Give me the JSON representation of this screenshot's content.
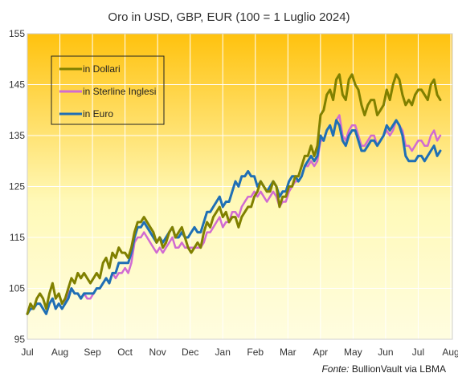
{
  "chart_data": {
    "type": "line",
    "title": "Oro in USD, GBP, EUR (100 = 1 Luglio 2024)",
    "source_prefix": "Fonte:",
    "source_name": " BullionVault via LBMA",
    "xlabel": "",
    "ylabel": "",
    "ylim": [
      95,
      155
    ],
    "yticks": [
      95,
      105,
      115,
      125,
      135,
      145,
      155
    ],
    "xtick_labels": [
      "Jul",
      "Aug",
      "Sep",
      "Oct",
      "Nov",
      "Dec",
      "Jan",
      "Feb",
      "Mar",
      "Apr",
      "May",
      "Jun",
      "Jul",
      "Aug"
    ],
    "grid": true,
    "legend_position": "top-left",
    "background_gradient": [
      "#ffc20e",
      "#fff9b8",
      "#fffde0"
    ],
    "series": [
      {
        "name": "in Dollari",
        "color": "#808000",
        "values": [
          100,
          102,
          101,
          103,
          104,
          103,
          101,
          104,
          106,
          103,
          104,
          102,
          103,
          105,
          107,
          106,
          108,
          107,
          108,
          107,
          106,
          107,
          108,
          107,
          110,
          111,
          109,
          112,
          111,
          113,
          112,
          112,
          111,
          113,
          116,
          118,
          118,
          119,
          118,
          117,
          116,
          114,
          115,
          113,
          114,
          116,
          117,
          115,
          116,
          117,
          115,
          113,
          112,
          113,
          114,
          113,
          116,
          118,
          117,
          119,
          120,
          121,
          119,
          120,
          118,
          119,
          119,
          117,
          119,
          120,
          121,
          121,
          123,
          124,
          126,
          125,
          124,
          124,
          126,
          125,
          121,
          123,
          123,
          125,
          125,
          127,
          127,
          129,
          131,
          131,
          133,
          131,
          133,
          139,
          140,
          143,
          144,
          142,
          146,
          147,
          143,
          142,
          146,
          147,
          145,
          144,
          141,
          139,
          141,
          142,
          142,
          139,
          140,
          141,
          144,
          142,
          145,
          147,
          146,
          143,
          141,
          142,
          141,
          143,
          144,
          144,
          143,
          142,
          145,
          146,
          143,
          142
        ]
      },
      {
        "name": "in Sterline Inglesi",
        "color": "#d16bd1",
        "values": [
          100,
          101,
          101,
          102,
          102,
          101,
          100,
          102,
          103,
          101,
          102,
          101,
          102,
          104,
          105,
          104,
          104,
          103,
          104,
          103,
          103,
          104,
          105,
          105,
          106,
          107,
          106,
          108,
          107,
          108,
          108,
          109,
          108,
          110,
          114,
          115,
          115,
          116,
          115,
          114,
          113,
          112,
          113,
          112,
          113,
          114,
          115,
          113,
          113,
          114,
          113,
          113,
          113,
          113,
          113,
          113,
          114,
          116,
          116,
          117,
          118,
          119,
          117,
          118,
          118,
          120,
          120,
          119,
          121,
          122,
          123,
          123,
          124,
          123,
          124,
          123,
          122,
          123,
          124,
          123,
          121,
          122,
          122,
          124,
          125,
          126,
          126,
          127,
          129,
          129,
          130,
          129,
          130,
          134,
          134,
          136,
          137,
          135,
          138,
          139,
          135,
          134,
          136,
          137,
          137,
          135,
          133,
          133,
          134,
          135,
          135,
          133,
          134,
          135,
          136,
          135,
          136,
          138,
          137,
          136,
          133,
          133,
          132,
          133,
          134,
          134,
          133,
          133,
          135,
          136,
          134,
          135
        ]
      },
      {
        "name": "in Euro",
        "color": "#1f6fb5",
        "values": [
          100,
          101,
          101,
          102,
          102,
          101,
          100,
          102,
          103,
          101,
          102,
          101,
          102,
          103,
          105,
          104,
          104,
          103,
          104,
          104,
          104,
          104,
          105,
          105,
          106,
          107,
          106,
          108,
          108,
          110,
          110,
          110,
          110,
          112,
          115,
          117,
          117,
          118,
          117,
          116,
          115,
          114,
          115,
          114,
          115,
          116,
          117,
          115,
          115,
          116,
          115,
          115,
          116,
          117,
          116,
          116,
          118,
          120,
          120,
          121,
          122,
          123,
          121,
          122,
          122,
          124,
          126,
          125,
          127,
          127,
          128,
          127,
          127,
          125,
          126,
          125,
          124,
          125,
          126,
          125,
          123,
          124,
          124,
          126,
          127,
          127,
          126,
          127,
          129,
          130,
          131,
          130,
          131,
          135,
          134,
          136,
          137,
          135,
          138,
          137,
          134,
          133,
          135,
          136,
          136,
          134,
          132,
          132,
          133,
          134,
          134,
          133,
          134,
          135,
          137,
          136,
          137,
          138,
          137,
          135,
          131,
          130,
          130,
          130,
          131,
          131,
          130,
          131,
          132,
          133,
          131,
          132
        ]
      }
    ]
  }
}
